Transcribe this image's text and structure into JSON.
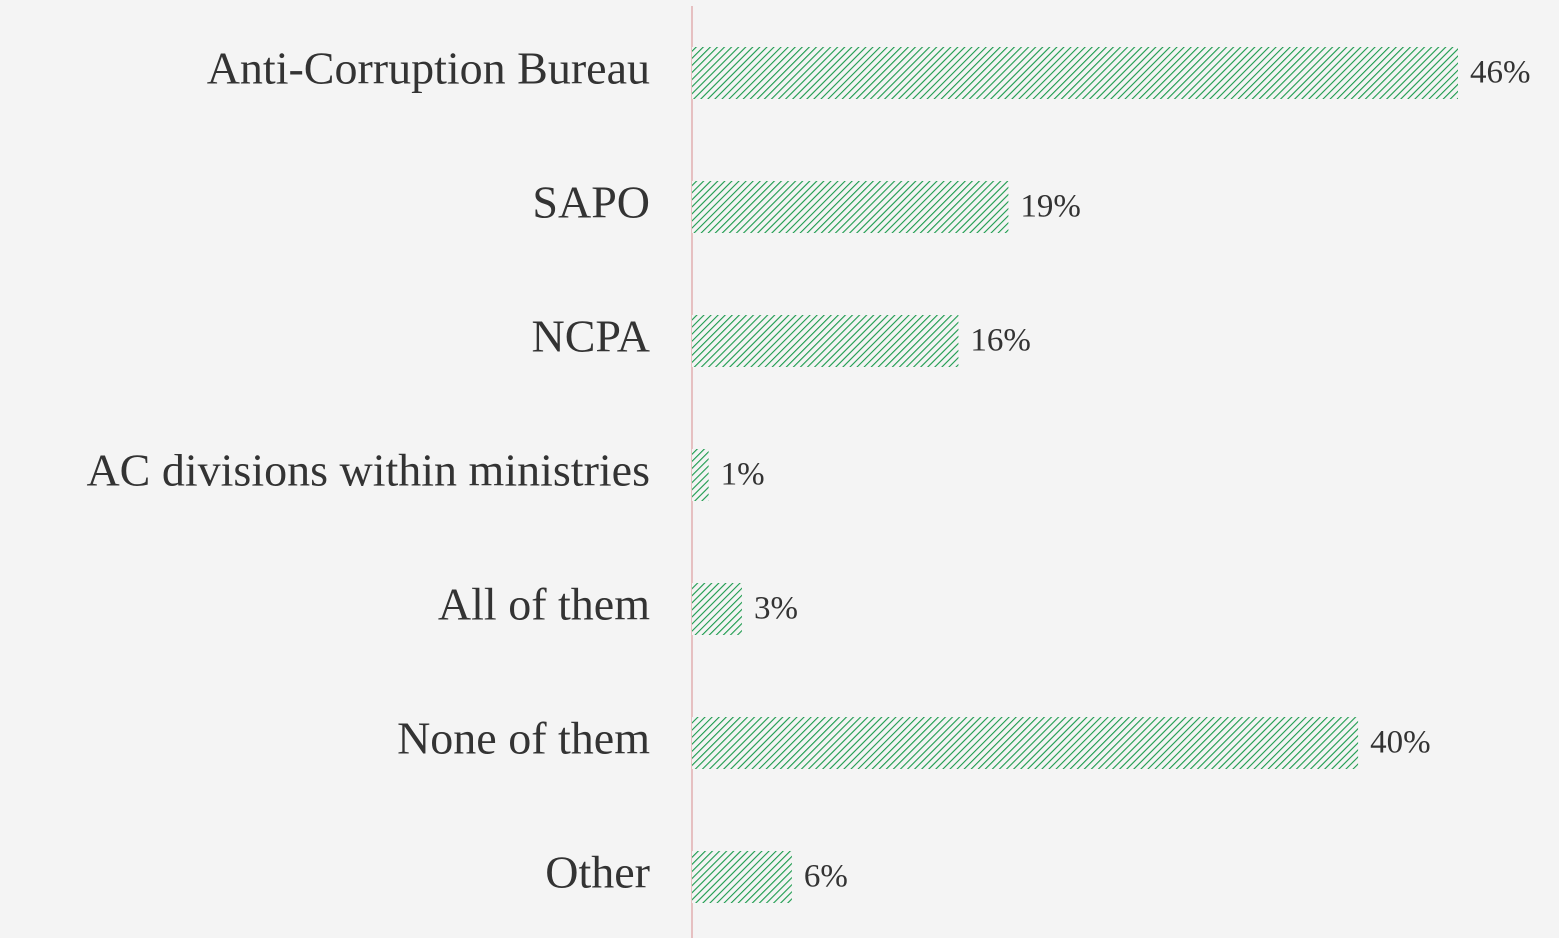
{
  "chart_data": {
    "type": "bar",
    "orientation": "horizontal",
    "categories": [
      "Anti-Corruption Bureau",
      "SAPO",
      "NCPA",
      "AC divisions within ministries",
      "All of them",
      "None of them",
      "Other"
    ],
    "values": [
      46,
      19,
      16,
      1,
      3,
      40,
      6
    ],
    "value_labels": [
      "46%",
      "19%",
      "16%",
      "1%",
      "3%",
      "40%",
      "6%"
    ],
    "color": "#1a9a4c",
    "pattern": "hatch"
  }
}
